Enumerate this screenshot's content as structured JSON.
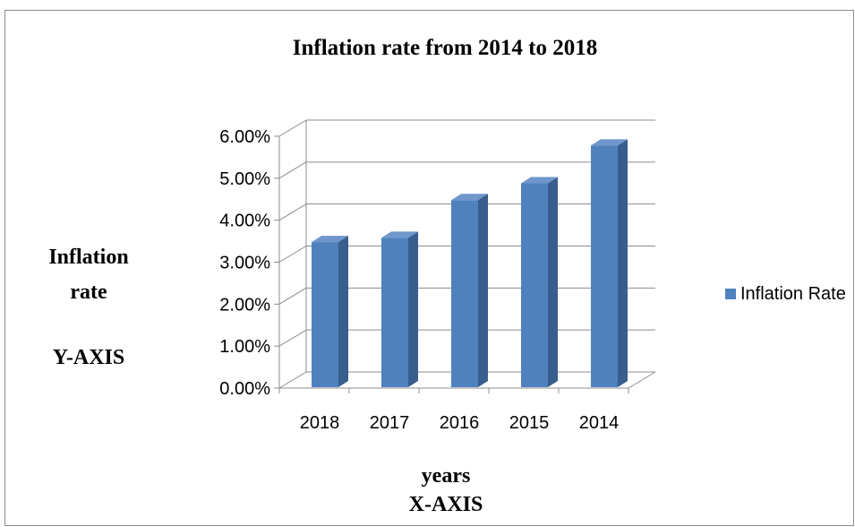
{
  "chart_data": {
    "type": "bar",
    "title": "Inflation rate from 2014 to 2018",
    "ylabel_lines": [
      "Inflation",
      "rate",
      "Y-AXIS"
    ],
    "xlabel_lines": [
      "years",
      "X-AXIS"
    ],
    "categories": [
      "2018",
      "2017",
      "2016",
      "2015",
      "2014"
    ],
    "series": [
      {
        "name": "Inflation Rate",
        "color": "#4f81bd",
        "values": [
          3.5,
          3.6,
          4.5,
          4.9,
          5.8
        ]
      }
    ],
    "ylim": [
      0,
      6
    ],
    "yticks": [
      "0.00%",
      "1.00%",
      "2.00%",
      "3.00%",
      "4.00%",
      "5.00%",
      "6.00%"
    ],
    "grid": true,
    "legend_position": "right",
    "style": "3d-column"
  }
}
